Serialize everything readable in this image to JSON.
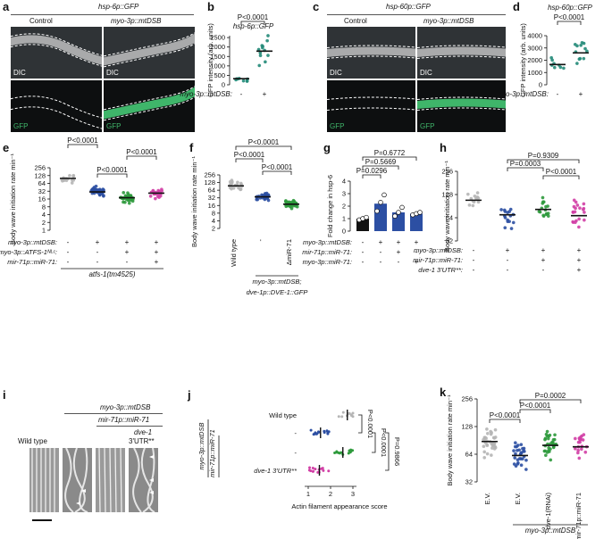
{
  "panel_letters": [
    "a",
    "b",
    "c",
    "d",
    "e",
    "f",
    "g",
    "h",
    "i",
    "j",
    "k"
  ],
  "panel_a": {
    "header": "hsp-6p::GFP",
    "col1": "Control",
    "col2": "myo-3p::mtDSB",
    "row1": "DIC",
    "row2": "GFP"
  },
  "panel_c": {
    "header": "hsp-60p::GFP",
    "col1": "Control",
    "col2": "myo-3p::mtDSB",
    "row1": "DIC",
    "row2": "GFP"
  },
  "panel_i": {
    "header1": "myo-3p::mtDSB",
    "header2": "mir-71p::miR-71",
    "header3a": "dve-1",
    "header3b": "3'UTR**",
    "col1": "Wild type"
  },
  "colors": {
    "black": "#111111",
    "grey": "#b5b5b5",
    "blue": "#2c4fa3",
    "green": "#2e9a3c",
    "magenta": "#d23fa6",
    "teal": "#238a78",
    "gfp": "#3fb56a"
  },
  "chart_data": [
    {
      "panel": "b",
      "type": "scatter",
      "title": "hsp-6p::GFP",
      "ylabel": "GFP intensity (arb. units)",
      "yticks": [
        0,
        500,
        1000,
        1500,
        2000,
        2500
      ],
      "ylim": [
        0,
        2600
      ],
      "groups": [
        {
          "label": "-",
          "mean": 320,
          "color": "#238a78",
          "n": 8
        },
        {
          "label": "+",
          "mean": 1780,
          "color": "#238a78",
          "n": 12
        }
      ],
      "row_label": "myo-3p::mtDSB:",
      "annotations": [
        {
          "text": "P<0.0001",
          "from": 0,
          "to": 1
        }
      ]
    },
    {
      "panel": "d",
      "type": "scatter",
      "title": "hsp-60p::GFP",
      "ylabel": "GFP intensity (arb. units)",
      "yticks": [
        0,
        1000,
        2000,
        3000,
        4000
      ],
      "ylim": [
        0,
        4000
      ],
      "groups": [
        {
          "label": "-",
          "mean": 1650,
          "color": "#238a78",
          "n": 8
        },
        {
          "label": "+",
          "mean": 2600,
          "color": "#238a78",
          "n": 12
        }
      ],
      "row_label": "myo-3p::mtDSB:",
      "annotations": [
        {
          "text": "P<0.0001",
          "from": 0,
          "to": 1
        }
      ]
    },
    {
      "panel": "e",
      "type": "scatter",
      "ylabel": "Body wave initiation rate min⁻¹",
      "yscale": "log2",
      "yticks": [
        1,
        2,
        4,
        8,
        16,
        32,
        64,
        128,
        256
      ],
      "ylim": [
        1,
        256
      ],
      "groups": [
        {
          "mean": 100,
          "color": "#b5b5b5",
          "n": 14
        },
        {
          "mean": 30,
          "color": "#2c4fa3",
          "n": 40
        },
        {
          "mean": 18,
          "color": "#2e9a3c",
          "n": 34
        },
        {
          "mean": 27,
          "color": "#d23fa6",
          "n": 20
        }
      ],
      "rows": [
        {
          "label": "myo-3p::mtDSB:",
          "values": [
            "-",
            "+",
            "+",
            "+"
          ]
        },
        {
          "label": "myo-3p::ATFS-1ᴺᴸᶜ:",
          "values": [
            "-",
            "-",
            "+",
            "+"
          ]
        },
        {
          "label": "mir-71p::miR-71:",
          "values": [
            "-",
            "-",
            "-",
            "+"
          ]
        }
      ],
      "footer": "atfs-1(tm4525)",
      "annotations": [
        {
          "text": "P<0.0001",
          "from": 0,
          "to": 1
        },
        {
          "text": "P<0.0001",
          "from": 1,
          "to": 2
        },
        {
          "text": "P<0.0001",
          "from": 2,
          "to": 3
        }
      ]
    },
    {
      "panel": "f",
      "type": "scatter",
      "ylabel": "Body wave initiation rate min⁻¹",
      "yscale": "log2",
      "yticks": [
        2,
        4,
        8,
        16,
        32,
        64,
        128,
        256
      ],
      "ylim": [
        2,
        256
      ],
      "groups": [
        {
          "label": "Wild type",
          "mean": 95,
          "color": "#b5b5b5",
          "n": 22
        },
        {
          "label": "-",
          "mean": 35,
          "color": "#2c4fa3",
          "n": 26
        },
        {
          "label": "ΔmiR-71",
          "mean": 18,
          "color": "#2e9a3c",
          "n": 34
        }
      ],
      "footer1": "myo-3p::mtDSB;",
      "footer2": "dve-1p::DVE-1::GFP",
      "annotations": [
        {
          "text": "P<0.0001",
          "from": 0,
          "to": 1
        },
        {
          "text": "P<0.0001",
          "from": 1,
          "to": 2
        },
        {
          "text": "P<0.0001",
          "from": 0,
          "to": 2
        }
      ]
    },
    {
      "panel": "g",
      "type": "bar",
      "ylabel": "Fold change in hsp-6",
      "yticks": [
        0,
        1,
        2,
        3,
        4
      ],
      "ylim": [
        0,
        4
      ],
      "groups": [
        {
          "value": 1.0,
          "color": "#111111",
          "points": [
            0.9,
            1.0,
            1.1
          ]
        },
        {
          "value": 2.2,
          "color": "#2c4fa3",
          "points": [
            1.6,
            2.3,
            2.9
          ]
        },
        {
          "value": 1.5,
          "color": "#2c4fa3",
          "points": [
            1.2,
            1.5,
            1.9
          ]
        },
        {
          "value": 1.4,
          "color": "#2c4fa3",
          "points": [
            1.3,
            1.4,
            1.5
          ]
        }
      ],
      "rows": [
        {
          "label": "myo-3p::mtDSB:",
          "values": [
            "-",
            "+",
            "+",
            "+"
          ]
        },
        {
          "label": "mir-71p::miR-71:",
          "values": [
            "-",
            "-",
            "+",
            "-"
          ]
        },
        {
          "label": "myo-3p::miR-71:",
          "values": [
            "-",
            "-",
            "-",
            "+"
          ]
        }
      ],
      "annotations": [
        {
          "text": "P=0.0296",
          "from": 0,
          "to": 1
        },
        {
          "text": "P=0.5669",
          "from": 0,
          "to": 2
        },
        {
          "text": "P=0.6772",
          "from": 0,
          "to": 3
        }
      ]
    },
    {
      "panel": "h",
      "type": "scatter",
      "ylabel": "Body wave initiation rate min⁻¹",
      "yscale": "log2",
      "yticks": [
        32,
        64,
        128,
        256
      ],
      "ylim": [
        32,
        256
      ],
      "groups": [
        {
          "mean": 108,
          "color": "#b5b5b5",
          "n": 12
        },
        {
          "mean": 70,
          "color": "#2c4fa3",
          "n": 16
        },
        {
          "mean": 82,
          "color": "#2e9a3c",
          "n": 16
        },
        {
          "mean": 68,
          "color": "#d23fa6",
          "n": 20
        }
      ],
      "rows": [
        {
          "label": "myo-3p::mtDSB:",
          "values": [
            "-",
            "+",
            "+",
            "+"
          ]
        },
        {
          "label": "mir-71p::miR-71:",
          "values": [
            "-",
            "-",
            "+",
            "+"
          ]
        },
        {
          "label": "dve-1 3'UTR**:",
          "values": [
            "-",
            "-",
            "-",
            "+"
          ]
        }
      ],
      "annotations": [
        {
          "text": "P=0.0003",
          "from": 1,
          "to": 2
        },
        {
          "text": "P<0.0001",
          "from": 2,
          "to": 3
        },
        {
          "text": "P=0.9309",
          "from": 1,
          "to": 3
        }
      ]
    },
    {
      "panel": "j",
      "type": "scatter",
      "xlabel": "Actin filament appearance score",
      "xticks": [
        1,
        2,
        3
      ],
      "xlim": [
        1,
        3
      ],
      "groups": [
        {
          "label": "Wild type",
          "mean": 2.75,
          "color": "#b5b5b5",
          "n": 10
        },
        {
          "label": "-",
          "mean": 1.55,
          "color": "#2c4fa3",
          "n": 14
        },
        {
          "label": "-",
          "mean": 2.55,
          "color": "#2e9a3c",
          "n": 14
        },
        {
          "label": "dve-1 3'UTR**",
          "mean": 1.5,
          "color": "#d23fa6",
          "n": 14
        }
      ],
      "side_label1": "myo-3p::mtDSB",
      "side_label2": "mir-71p::miR-71",
      "annotations": [
        {
          "text": "P<0.0001",
          "from": 0,
          "to": 1
        },
        {
          "text": "P<0.0001",
          "from": 1,
          "to": 2
        },
        {
          "text": "P=0.9866",
          "from": 1,
          "to": 3
        }
      ]
    },
    {
      "panel": "k",
      "type": "scatter",
      "ylabel": "Body wave initiation rate min⁻¹",
      "yscale": "log2",
      "yticks": [
        32,
        64,
        128,
        256
      ],
      "ylim": [
        32,
        256
      ],
      "groups": [
        {
          "label": "E.V.",
          "mean": 88,
          "color": "#b5b5b5",
          "n": 36
        },
        {
          "label": "E.V.",
          "mean": 62,
          "color": "#2c4fa3",
          "n": 30
        },
        {
          "label": "dve-1(RNAi)",
          "mean": 80,
          "color": "#2e9a3c",
          "n": 30
        },
        {
          "label": "E.V. + mir-71p::miR-71",
          "mean": 77,
          "color": "#d23fa6",
          "n": 20
        }
      ],
      "footer": "myo-3p::mtDSB",
      "annotations": [
        {
          "text": "P<0.0001",
          "from": 0,
          "to": 1
        },
        {
          "text": "P<0.0001",
          "from": 1,
          "to": 2
        },
        {
          "text": "P=0.0002",
          "from": 1,
          "to": 3
        }
      ]
    }
  ]
}
